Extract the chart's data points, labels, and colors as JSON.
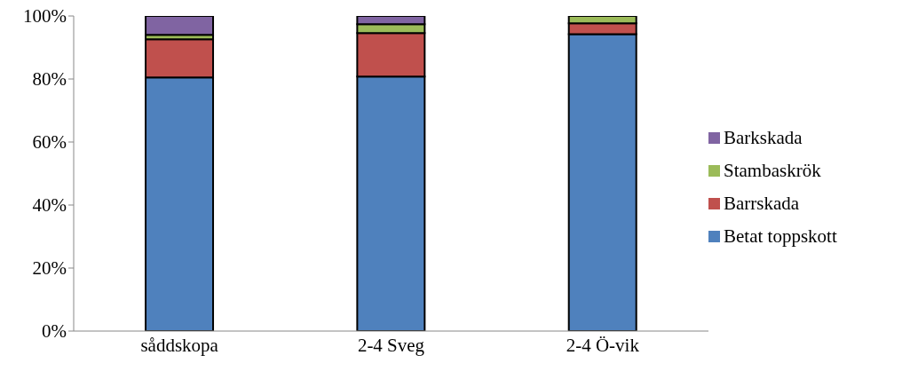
{
  "chart_data": {
    "type": "bar",
    "stacked": true,
    "categories": [
      "såddskopa",
      "2-4 Sveg",
      "2-4 Ö-vik"
    ],
    "series": [
      {
        "name": "Betat toppskott",
        "color": "#4f81bd",
        "values": [
          80.5,
          80.8,
          94.2
        ]
      },
      {
        "name": "Barrskada",
        "color": "#c0504d",
        "values": [
          12.1,
          13.8,
          3.5
        ]
      },
      {
        "name": "Stambaskrök",
        "color": "#9bbb59",
        "values": [
          1.4,
          2.8,
          2.3
        ]
      },
      {
        "name": "Barkskada",
        "color": "#8064a2",
        "values": [
          6.0,
          2.6,
          0
        ]
      }
    ],
    "ylim": [
      0,
      100
    ],
    "yticks": [
      {
        "value": 0,
        "label": "0%"
      },
      {
        "value": 20,
        "label": "20%"
      },
      {
        "value": 40,
        "label": "40%"
      },
      {
        "value": 60,
        "label": "60%"
      },
      {
        "value": 80,
        "label": "80%"
      },
      {
        "value": 100,
        "label": "100%"
      }
    ],
    "grid": false,
    "legend": "right"
  }
}
